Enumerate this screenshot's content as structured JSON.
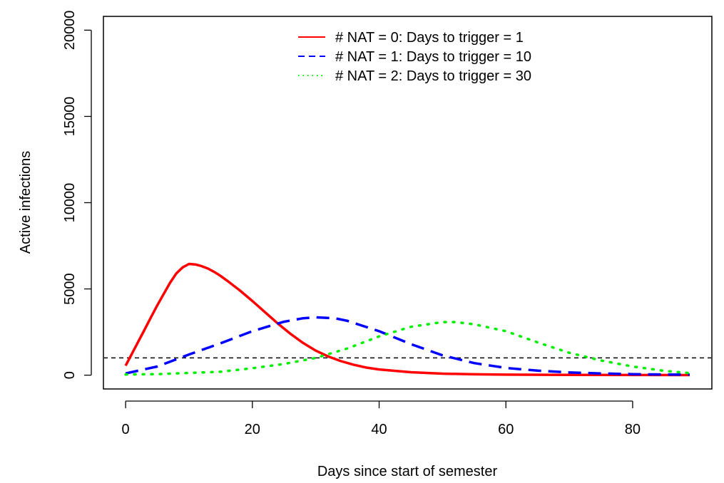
{
  "chart_data": {
    "type": "line",
    "xlabel": "Days since start of semester",
    "ylabel": "Active infections",
    "xlim": [
      -3.5,
      92.5
    ],
    "ylim": [
      -800,
      20800
    ],
    "xticks": [
      0,
      20,
      40,
      60,
      80
    ],
    "yticks": [
      0,
      5000,
      10000,
      15000,
      20000
    ],
    "grid": false,
    "legend_position": "top-right",
    "reference_line": {
      "y": 1000,
      "style": "dashed",
      "color": "#000000"
    },
    "series": [
      {
        "name": "# NAT = 0: Days to trigger = 1",
        "color": "#ff0000",
        "style": "solid",
        "x": [
          0,
          1,
          2,
          3,
          4,
          5,
          6,
          7,
          8,
          9,
          10,
          11,
          12,
          13,
          14,
          15,
          16,
          18,
          20,
          22,
          24,
          26,
          28,
          30,
          32,
          34,
          36,
          38,
          40,
          45,
          50,
          55,
          60,
          70,
          80,
          89
        ],
        "y": [
          550,
          1250,
          1950,
          2650,
          3350,
          4050,
          4700,
          5350,
          5900,
          6250,
          6450,
          6420,
          6320,
          6180,
          5980,
          5750,
          5480,
          4920,
          4300,
          3650,
          3000,
          2400,
          1870,
          1420,
          1080,
          810,
          600,
          440,
          330,
          170,
          90,
          50,
          30,
          15,
          8,
          5
        ]
      },
      {
        "name": "# NAT = 1: Days to trigger = 10",
        "color": "#0000ff",
        "style": "dashed",
        "x": [
          0,
          5,
          10,
          15,
          20,
          25,
          28,
          30,
          33,
          35,
          40,
          45,
          50,
          55,
          60,
          65,
          70,
          75,
          80,
          85,
          89
        ],
        "y": [
          100,
          500,
          1200,
          1850,
          2550,
          3100,
          3300,
          3350,
          3300,
          3150,
          2550,
          1800,
          1150,
          700,
          420,
          260,
          160,
          100,
          60,
          40,
          30
        ]
      },
      {
        "name": "# NAT = 2: Days to trigger = 30",
        "color": "#00ee00",
        "style": "dotted",
        "x": [
          0,
          5,
          10,
          15,
          20,
          25,
          30,
          35,
          40,
          45,
          50,
          52,
          55,
          60,
          65,
          70,
          75,
          80,
          85,
          89
        ],
        "y": [
          40,
          60,
          130,
          200,
          400,
          650,
          1000,
          1550,
          2250,
          2800,
          3080,
          3080,
          2950,
          2550,
          1900,
          1300,
          850,
          500,
          250,
          120
        ]
      }
    ]
  }
}
